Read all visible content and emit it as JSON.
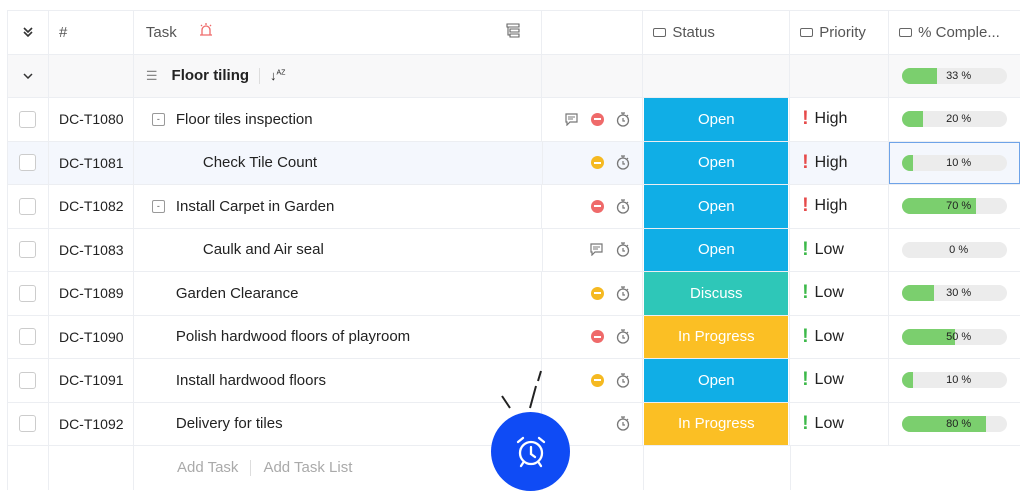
{
  "header": {
    "collapse_icon": "double-chevron-down-icon",
    "id_label": "#",
    "task_label": "Task",
    "task_alert_icon": "siren-icon",
    "status_label": "Status",
    "priority_label": "Priority",
    "complete_label": "% Comple..."
  },
  "group": {
    "name": "Floor tiling",
    "percent": 33,
    "percent_label": "33 %"
  },
  "colors": {
    "open": "#10aee6",
    "discuss": "#2ec7b8",
    "in_progress": "#fbbf24",
    "red": "#ef6a6a",
    "yellow": "#f5b921",
    "progress": "#7bcf6e",
    "fab": "#0f4bf5"
  },
  "rows": [
    {
      "id": "DC-T1080",
      "task": "Floor tiles inspection",
      "indent": 0,
      "expand": true,
      "comment": true,
      "dot": "red",
      "status": "Open",
      "priority": "High",
      "percent": 20,
      "percent_label": "20 %"
    },
    {
      "id": "DC-T1081",
      "task": "Check Tile Count",
      "indent": 1,
      "expand": false,
      "comment": false,
      "dot": "yellow",
      "status": "Open",
      "priority": "High",
      "percent": 10,
      "percent_label": "10 %"
    },
    {
      "id": "DC-T1082",
      "task": "Install Carpet in Garden",
      "indent": 0,
      "expand": true,
      "comment": false,
      "dot": "red",
      "status": "Open",
      "priority": "High",
      "percent": 70,
      "percent_label": "70 %"
    },
    {
      "id": "DC-T1083",
      "task": "Caulk and Air seal",
      "indent": 1,
      "expand": false,
      "comment": true,
      "dot": "",
      "status": "Open",
      "priority": "Low",
      "percent": 0,
      "percent_label": "0 %"
    },
    {
      "id": "DC-T1089",
      "task": "Garden Clearance",
      "indent": 0,
      "expand": false,
      "comment": false,
      "dot": "yellow",
      "status": "Discuss",
      "priority": "Low",
      "percent": 30,
      "percent_label": "30 %"
    },
    {
      "id": "DC-T1090",
      "task": "Polish hardwood floors of playroom",
      "indent": 0,
      "expand": false,
      "comment": false,
      "dot": "red",
      "status": "In Progress",
      "priority": "Low",
      "percent": 50,
      "percent_label": "50 %"
    },
    {
      "id": "DC-T1091",
      "task": "Install hardwood floors",
      "indent": 0,
      "expand": false,
      "comment": false,
      "dot": "yellow",
      "status": "Open",
      "priority": "Low",
      "percent": 10,
      "percent_label": "10 %"
    },
    {
      "id": "DC-T1092",
      "task": "Delivery for tiles",
      "indent": 0,
      "expand": false,
      "comment": false,
      "dot": "",
      "status": "In Progress",
      "priority": "Low",
      "percent": 80,
      "percent_label": "80 %"
    }
  ],
  "footer": {
    "add_task": "Add Task",
    "add_task_list": "Add Task List"
  },
  "fab_icon": "alarm-clock-icon"
}
